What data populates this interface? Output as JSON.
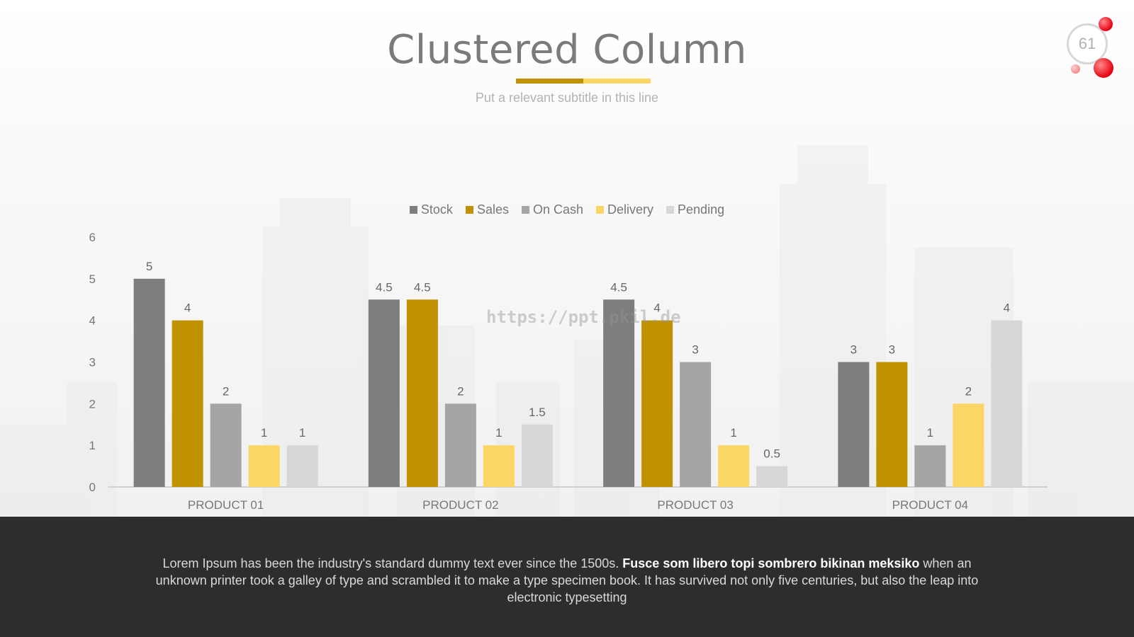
{
  "header": {
    "title": "Clustered Column",
    "subtitle": "Put a relevant subtitle in this line",
    "page_number": "61"
  },
  "watermark": "https://ppt.pkil.de",
  "chart_data": {
    "type": "bar",
    "categories": [
      "PRODUCT 01",
      "PRODUCT 02",
      "PRODUCT 03",
      "PRODUCT 04"
    ],
    "series": [
      {
        "name": "Stock",
        "color": "#7f7d7e",
        "values": [
          5,
          4.5,
          4.5,
          3
        ]
      },
      {
        "name": "Sales",
        "color": "#c09100",
        "values": [
          4,
          4.5,
          4,
          3
        ]
      },
      {
        "name": "On Cash",
        "color": "#a6a5a6",
        "values": [
          2,
          2,
          3,
          1
        ]
      },
      {
        "name": "Delivery",
        "color": "#fcd664",
        "values": [
          1,
          1,
          1,
          2
        ]
      },
      {
        "name": "Pending",
        "color": "#d8d7d7",
        "values": [
          1,
          1.5,
          0.5,
          4
        ]
      }
    ],
    "ylim": [
      0,
      6
    ],
    "yticks": [
      0,
      1,
      2,
      3,
      4,
      5,
      6
    ],
    "legend": "top-center",
    "grid": false,
    "data_labels": true
  },
  "footer": {
    "text_before": "Lorem Ipsum has been the industry's standard dummy text ever since the 1500s. ",
    "text_bold": "Fusce som libero topi sombrero bikinan meksiko",
    "text_after": " when an unknown printer took a galley of type and scrambled it to make a type specimen book. It has survived not only five centuries, but also the leap into electronic typesetting"
  }
}
